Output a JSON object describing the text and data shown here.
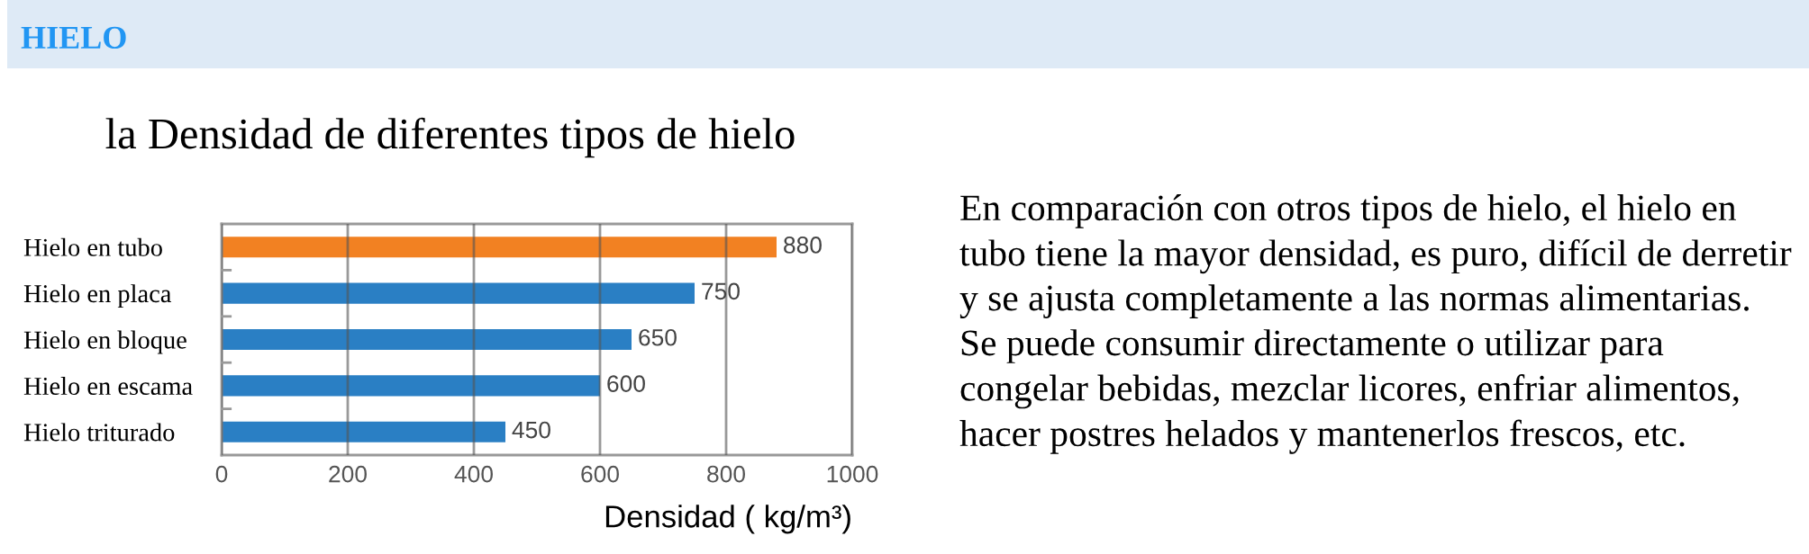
{
  "chart_data": {
    "type": "bar",
    "orientation": "horizontal",
    "title": "HIELO",
    "subtitle": "la Densidad de diferentes tipos de hielo",
    "xlabel": "Densidad ( kg/m³)",
    "categories": [
      "Hielo en tubo",
      "Hielo en placa",
      "Hielo en bloque",
      "Hielo en escama",
      "Hielo triturado"
    ],
    "values": [
      880,
      750,
      650,
      600,
      450
    ],
    "colors": [
      "#f28122",
      "#2a7fc4",
      "#2a7fc4",
      "#2a7fc4",
      "#2a7fc4"
    ],
    "xlim": [
      0,
      1000
    ],
    "xticks": [
      0,
      200,
      400,
      600,
      800,
      1000
    ],
    "grid": "x",
    "data_labels": true,
    "annotations": [
      "En comparación con otros tipos de hielo, el hielo en\ntubo tiene la mayor densidad, es puro, difícil de derretir\ny se ajusta completamente a las normas alimentarias.\nSe puede consumir directamente o utilizar para\ncongelar bebidas, mezclar licores, enfriar alimentos,\nhacer postres helados y mantenerlos frescos, etc."
    ]
  }
}
